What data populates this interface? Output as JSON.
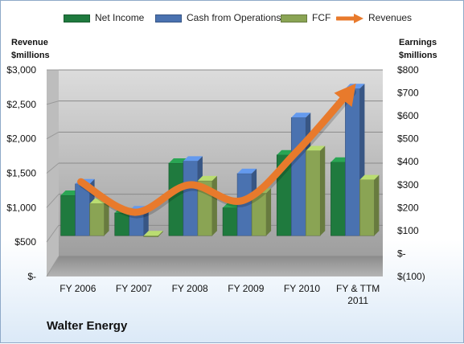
{
  "chart_data": {
    "type": "bar",
    "company": "Walter Energy",
    "left_axis_title": [
      "Revenue",
      "$millions"
    ],
    "right_axis_title": [
      "Earnings",
      "$millions"
    ],
    "categories": [
      "FY 2006",
      "FY 2007",
      "FY 2008",
      "FY 2009",
      "FY 2010",
      "FY & TTM\n2011"
    ],
    "left_ticks": [
      "$-",
      "$500",
      "$1,000",
      "$1,500",
      "$2,000",
      "$2,500",
      "$3,000"
    ],
    "right_ticks": [
      "$(100)",
      "$-",
      "$100",
      "$200",
      "$300",
      "$400",
      "$500",
      "$600",
      "$700",
      "$800"
    ],
    "ylim_left": [
      0,
      3000
    ],
    "ylim_right": [
      -100,
      800
    ],
    "bar_series": [
      {
        "name": "Net Income",
        "color": "#1f7a3e",
        "values": [
          195,
          110,
          350,
          135,
          390,
          355
        ]
      },
      {
        "name": "Cash from Operations",
        "color": "#4a72b0",
        "values": [
          250,
          120,
          360,
          300,
          570,
          710
        ]
      },
      {
        "name": "FCF",
        "color": "#8aa454",
        "values": [
          155,
          -5,
          265,
          205,
          410,
          270
        ]
      }
    ],
    "line_series": {
      "name": "Revenues",
      "color": "#e87a2c",
      "values": [
        1200,
        710,
        1150,
        900,
        1690,
        2680
      ]
    },
    "grid": true,
    "legend": "top"
  }
}
